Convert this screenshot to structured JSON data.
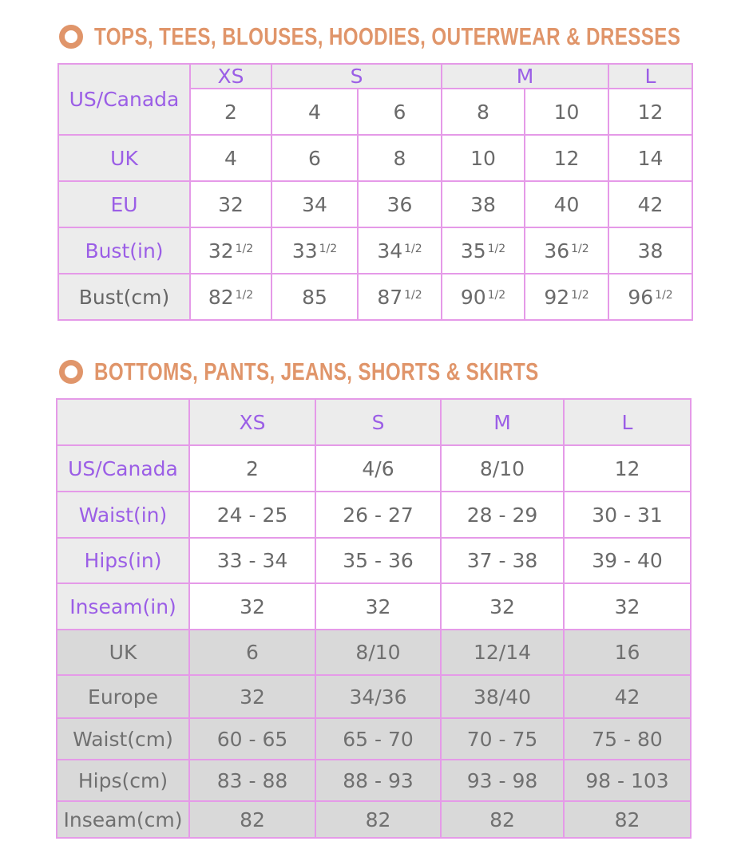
{
  "colors": {
    "heading": "#e0956a",
    "label_text": "#9b5ee6",
    "border": "#e59ae8",
    "header_bg": "#ececec",
    "metric_bg": "#d9d9d9"
  },
  "tops": {
    "icon": "circle-bullet-icon",
    "title": "TOPS, TEES, BLOUSES, HOODIES, OUTERWEAR & DRESSES",
    "corner_label": "US/Canada",
    "sizes": [
      {
        "label": "XS",
        "span": 1
      },
      {
        "label": "S",
        "span": 2
      },
      {
        "label": "M",
        "span": 2
      },
      {
        "label": "L",
        "span": 1
      }
    ],
    "us_values": [
      "2",
      "4",
      "6",
      "8",
      "10",
      "12"
    ],
    "rows": [
      {
        "label": "UK",
        "cells": [
          {
            "v": "4"
          },
          {
            "v": "6"
          },
          {
            "v": "8"
          },
          {
            "v": "10"
          },
          {
            "v": "12"
          },
          {
            "v": "14"
          }
        ]
      },
      {
        "label": "EU",
        "cells": [
          {
            "v": "32"
          },
          {
            "v": "34"
          },
          {
            "v": "36"
          },
          {
            "v": "38"
          },
          {
            "v": "40"
          },
          {
            "v": "42"
          }
        ]
      },
      {
        "label": "Bust(in)",
        "cells": [
          {
            "v": "32",
            "f": "1/2"
          },
          {
            "v": "33",
            "f": "1/2"
          },
          {
            "v": "34",
            "f": "1/2"
          },
          {
            "v": "35",
            "f": "1/2"
          },
          {
            "v": "36",
            "f": "1/2"
          },
          {
            "v": "38"
          }
        ]
      },
      {
        "label": "Bust(cm)",
        "dark": true,
        "cells": [
          {
            "v": "82",
            "f": "1/2"
          },
          {
            "v": "85"
          },
          {
            "v": "87",
            "f": "1/2"
          },
          {
            "v": "90",
            "f": "1/2"
          },
          {
            "v": "92",
            "f": "1/2"
          },
          {
            "v": "96",
            "f": "1/2"
          }
        ]
      }
    ]
  },
  "bottoms": {
    "icon": "circle-bullet-icon",
    "title": "BOTTOMS, PANTS, JEANS, SHORTS & SKIRTS",
    "sizes": [
      "XS",
      "S",
      "M",
      "L"
    ],
    "rows": [
      {
        "label": "US/Canada",
        "cells": [
          "2",
          "4/6",
          "8/10",
          "12"
        ]
      },
      {
        "label": "Waist(in)",
        "cells": [
          "24 - 25",
          "26 - 27",
          "28 - 29",
          "30 - 31"
        ]
      },
      {
        "label": "Hips(in)",
        "cells": [
          "33 - 34",
          "35 - 36",
          "37 - 38",
          "39 - 40"
        ]
      },
      {
        "label": "Inseam(in)",
        "cells": [
          "32",
          "32",
          "32",
          "32"
        ]
      },
      {
        "label": "UK",
        "grey": true,
        "cells": [
          "6",
          "8/10",
          "12/14",
          "16"
        ]
      },
      {
        "label": "Europe",
        "grey": true,
        "cells": [
          "32",
          "34/36",
          "38/40",
          "42"
        ]
      },
      {
        "label": "Waist(cm)",
        "grey": true,
        "cells": [
          "60 - 65",
          "65 - 70",
          "70 - 75",
          "75 - 80"
        ]
      },
      {
        "label": "Hips(cm)",
        "grey": true,
        "cells": [
          "83 - 88",
          "88 - 93",
          "93 - 98",
          "98 - 103"
        ]
      },
      {
        "label": "Inseam(cm)",
        "grey": true,
        "cells": [
          "82",
          "82",
          "82",
          "82"
        ]
      }
    ]
  }
}
